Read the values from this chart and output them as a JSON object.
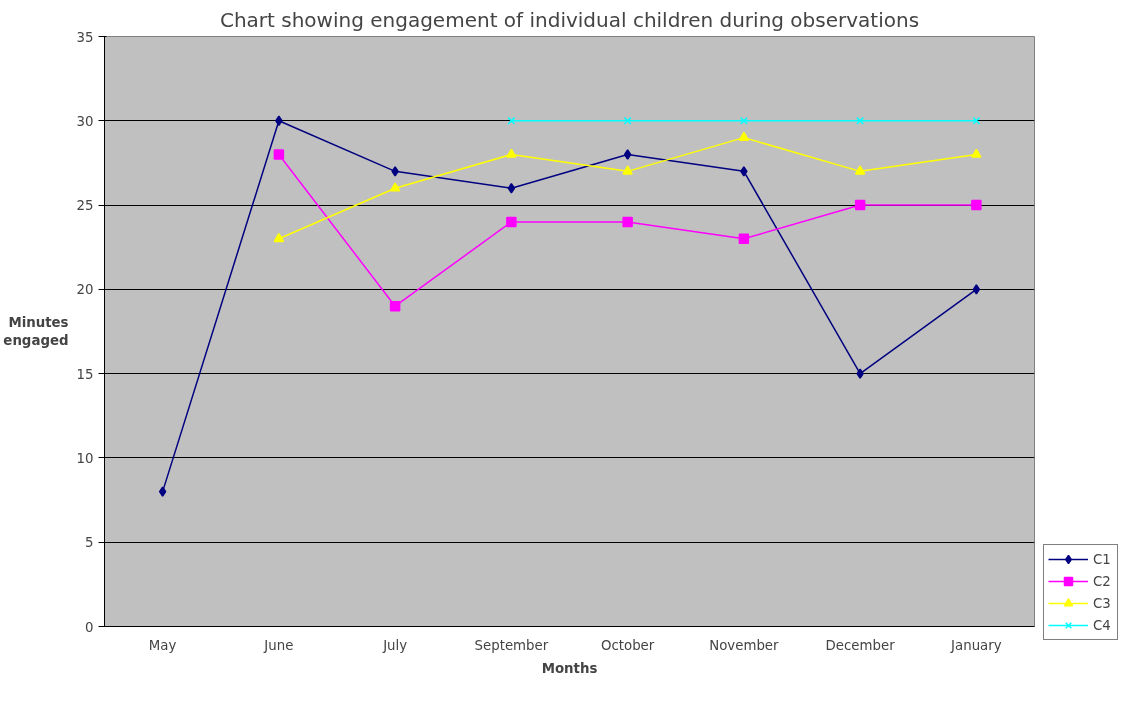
{
  "chart_data": {
    "type": "line",
    "title": "Chart showing engagement of individual children during observations",
    "xlabel": "Months",
    "ylabel": "Minutes engaged",
    "categories": [
      "May",
      "June",
      "July",
      "September",
      "October",
      "November",
      "December",
      "January"
    ],
    "series": [
      {
        "name": "C1",
        "color": "#000080",
        "marker": "diamond",
        "values": [
          8,
          30,
          27,
          26,
          28,
          27,
          15,
          20
        ]
      },
      {
        "name": "C2",
        "color": "#ff00ff",
        "marker": "square",
        "values": [
          null,
          28,
          19,
          24,
          24,
          23,
          25,
          25
        ]
      },
      {
        "name": "C3",
        "color": "#ffff00",
        "marker": "triangle",
        "values": [
          null,
          23,
          26,
          28,
          27,
          29,
          27,
          28
        ]
      },
      {
        "name": "C4",
        "color": "#00ffff",
        "marker": "cross",
        "values": [
          null,
          null,
          null,
          30,
          30,
          30,
          30,
          30
        ]
      }
    ],
    "ylim": [
      0,
      35
    ],
    "yticks": [
      0,
      5,
      10,
      15,
      20,
      25,
      30,
      35
    ],
    "grid": "y",
    "legend": "bottom right",
    "line_style": "solid"
  }
}
